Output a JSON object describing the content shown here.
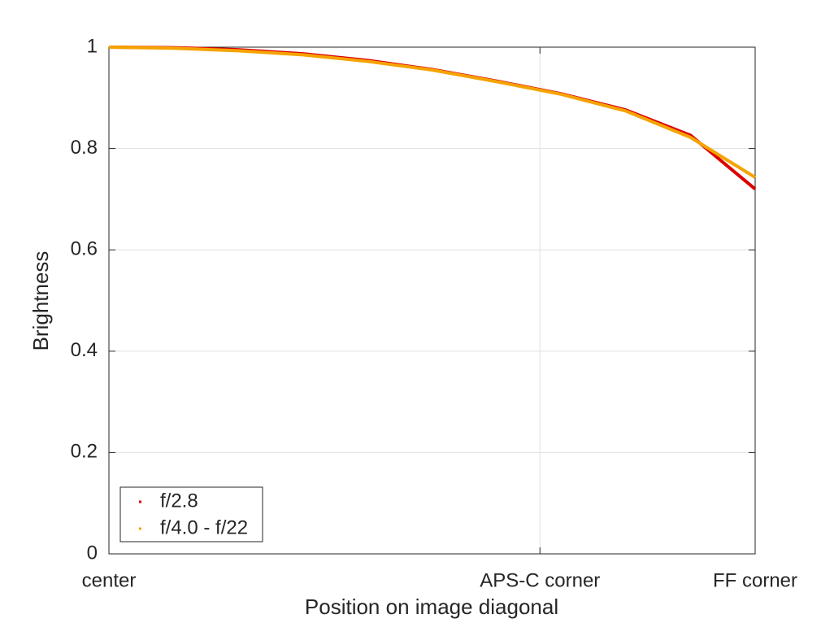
{
  "chart_data": {
    "type": "line",
    "xlabel": "Position on image diagonal",
    "ylabel": "Brightness",
    "x": [
      0,
      0.1,
      0.2,
      0.3,
      0.4,
      0.5,
      0.6,
      0.7,
      0.8,
      0.9,
      1.0
    ],
    "series": [
      {
        "name": "f/2.8",
        "color": "#dd0000",
        "values": [
          1.0,
          0.999,
          0.995,
          0.987,
          0.974,
          0.956,
          0.933,
          0.908,
          0.876,
          0.826,
          0.72
        ]
      },
      {
        "name": "f/4.0 - f/22",
        "color": "#f5a300",
        "values": [
          1.0,
          0.998,
          0.993,
          0.985,
          0.972,
          0.955,
          0.932,
          0.907,
          0.874,
          0.822,
          0.743
        ]
      }
    ],
    "xlim": [
      0,
      1
    ],
    "xticks": [
      {
        "value": 0,
        "label": "center"
      },
      {
        "value": 0.667,
        "label": "APS-C corner"
      },
      {
        "value": 1,
        "label": "FF corner"
      }
    ],
    "ylim": [
      0,
      1
    ],
    "yticks": [
      0,
      0.2,
      0.4,
      0.6,
      0.8,
      1
    ],
    "grid": true,
    "legend": "lower left"
  }
}
